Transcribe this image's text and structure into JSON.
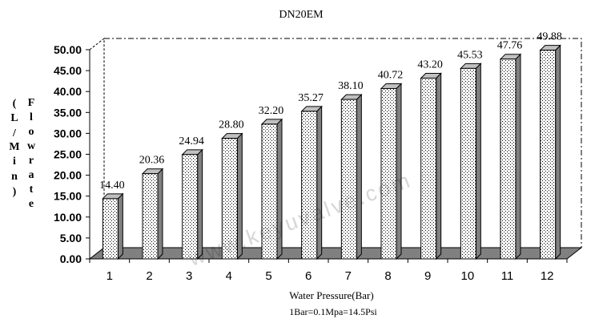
{
  "chart_data": {
    "type": "bar",
    "title": "DN20EM",
    "xlabel": "Water Pressure(Bar)",
    "note": "1Bar=0.1Mpa=14.5Psi",
    "ylabel_left": "（L/Min）",
    "ylabel_right": "Flowrate",
    "watermark": "www.keyuvalve.com",
    "categories": [
      "1",
      "2",
      "3",
      "4",
      "5",
      "6",
      "7",
      "8",
      "9",
      "10",
      "11",
      "12"
    ],
    "values": [
      14.4,
      20.36,
      24.94,
      28.8,
      32.2,
      35.27,
      38.1,
      40.72,
      43.2,
      45.53,
      47.76,
      49.88
    ],
    "data_labels": [
      "14.40",
      "20.36",
      "24.94",
      "28.80",
      "32.20",
      "35.27",
      "38.10",
      "40.72",
      "43.20",
      "45.53",
      "47.76",
      "49.88"
    ],
    "y_ticks": [
      "0.00",
      "5.00",
      "10.00",
      "15.00",
      "20.00",
      "25.00",
      "30.00",
      "35.00",
      "40.00",
      "45.00",
      "50.00"
    ],
    "ylim": [
      0,
      50
    ],
    "grid": false,
    "bar_style": "3d-dotted"
  }
}
